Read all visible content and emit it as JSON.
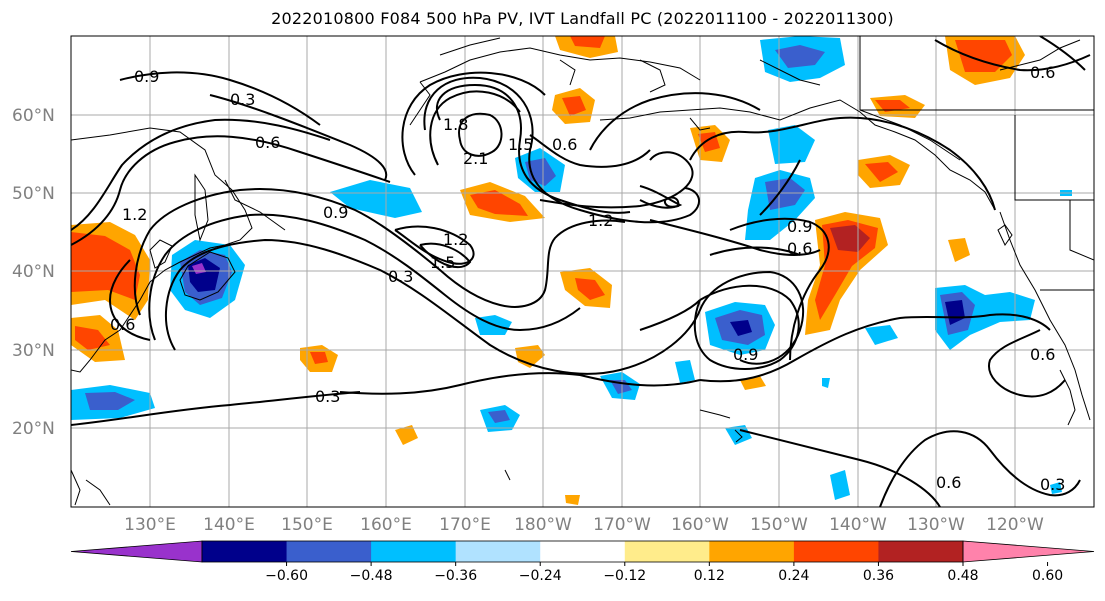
{
  "title": "2022010800 F084 500 hPa PV, IVT Landfall PC (2022011100 - 2022011300)",
  "lat_labels": [
    "60°N",
    "50°N",
    "40°N",
    "30°N",
    "20°N"
  ],
  "lon_labels": [
    "130°E",
    "140°E",
    "150°E",
    "160°E",
    "170°E",
    "180°W",
    "170°W",
    "160°W",
    "150°W",
    "140°W",
    "130°W",
    "120°W"
  ],
  "contour_labels": [
    "0.9",
    "0.3",
    "0.6",
    "1.2",
    "0.9",
    "1.8",
    "2.1",
    "1.5",
    "0.6",
    "1.2",
    "1.2",
    "1.5",
    "0.3",
    "0.9",
    "0.6",
    "0.9",
    "0.3",
    "0.6",
    "0.6",
    "0.3",
    "0.6",
    "0.6"
  ],
  "colorbar": {
    "colors": [
      "#9932cc",
      "#00008b",
      "#3a5fcd",
      "#00bfff",
      "#b0e2ff",
      "#ffffff",
      "#ffec8b",
      "#ffa500",
      "#ff4500",
      "#b22222",
      "#ff82ab"
    ],
    "ticks": [
      "−0.60",
      "−0.48",
      "−0.36",
      "−0.24",
      "−0.12",
      "0.12",
      "0.24",
      "0.36",
      "0.48",
      "0.60"
    ]
  }
}
